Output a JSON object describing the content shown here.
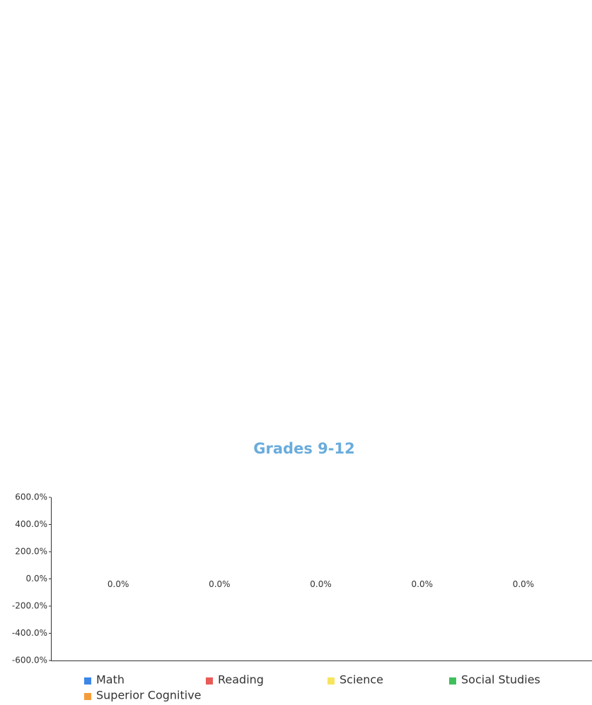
{
  "chart_data": {
    "type": "bar",
    "title": "Grades 9-12",
    "categories": [
      null
    ],
    "series": [
      {
        "name": "Math",
        "color": "#3c86e8",
        "values": [
          0
        ],
        "value_labels": [
          "0.0%"
        ]
      },
      {
        "name": "Reading",
        "color": "#e85b57",
        "values": [
          0
        ],
        "value_labels": [
          "0.0%"
        ]
      },
      {
        "name": "Science",
        "color": "#f7e45c",
        "values": [
          0
        ],
        "value_labels": [
          "0.0%"
        ]
      },
      {
        "name": "Social Studies",
        "color": "#3fbf5c",
        "values": [
          0
        ],
        "value_labels": [
          "0.0%"
        ]
      },
      {
        "name": "Superior Cognitive",
        "color": "#f59c3a",
        "values": [
          0
        ],
        "value_labels": [
          "0.0%"
        ]
      }
    ],
    "ylim": [
      -600,
      600
    ],
    "yticks": [
      {
        "value": -600,
        "label": "-600.0%"
      },
      {
        "value": -400,
        "label": "-400.0%"
      },
      {
        "value": -200,
        "label": "-200.0%"
      },
      {
        "value": 0,
        "label": "0.0%"
      },
      {
        "value": 200,
        "label": "200.0%"
      },
      {
        "value": 400,
        "label": "400.0%"
      },
      {
        "value": 600,
        "label": "600.0%"
      }
    ],
    "grid": false,
    "legend": "bottom"
  }
}
